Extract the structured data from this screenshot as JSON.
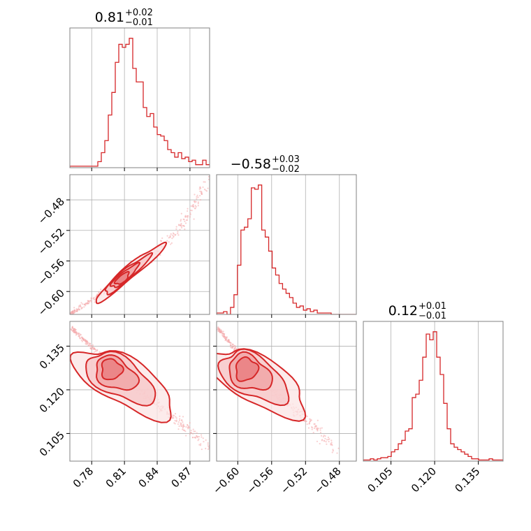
{
  "chart_data": {
    "type": "corner",
    "color": "#d62728",
    "grid": true,
    "panels": [
      {
        "kind": "histogram",
        "row": 0,
        "col": 0,
        "title": {
          "value": "0.81",
          "plus": "+0.02",
          "minus": "−0.01"
        },
        "xlim": [
          0.76,
          0.888
        ],
        "bins_start": 0.76,
        "bin_width": 0.0032,
        "values": [
          1,
          1,
          1,
          1,
          1,
          1,
          1,
          1,
          4,
          10,
          18,
          35,
          50,
          70,
          82,
          80,
          82,
          86,
          66,
          57,
          57,
          40,
          34,
          36,
          27,
          22,
          21,
          18,
          12,
          10,
          7,
          10,
          6,
          7,
          4,
          5,
          2,
          2,
          5,
          2,
          2,
          1,
          1,
          2
        ],
        "xticks": [
          0.78,
          0.81,
          0.84,
          0.87
        ],
        "xtick_labels": [
          "0.78",
          "0.81",
          "0.84",
          "0.87"
        ],
        "show_xtick_labels": false
      },
      {
        "kind": "contour",
        "row": 1,
        "col": 0,
        "xlim": [
          0.76,
          0.888
        ],
        "ylim": [
          -0.63,
          -0.447
        ],
        "xticks": [
          0.78,
          0.81,
          0.84,
          0.87
        ],
        "yticks": [
          -0.6,
          -0.56,
          -0.52,
          -0.48
        ],
        "ytick_labels": [
          "−0.60",
          "−0.56",
          "−0.52",
          "−0.48"
        ],
        "show_xtick_labels": false,
        "show_ytick_labels": true,
        "centerline": [
          [
            0.76,
            -0.63
          ],
          [
            0.8,
            -0.592
          ],
          [
            0.83,
            -0.56
          ],
          [
            0.86,
            -0.518
          ],
          [
            0.888,
            -0.451
          ]
        ],
        "sigma_levels": [
          {
            "center": [
              0.808,
              -0.583
            ],
            "slope_deg": 40,
            "a": 0.0048,
            "b": 0.0045
          },
          {
            "center": [
              0.81,
              -0.58
            ],
            "slope_deg": 40,
            "a": 0.01,
            "b": 0.0055
          },
          {
            "center": [
              0.812,
              -0.578
            ],
            "slope_deg": 40,
            "a": 0.017,
            "b": 0.0068
          },
          {
            "center": [
              0.815,
              -0.575
            ],
            "slope_deg": 40,
            "a": 0.026,
            "b": 0.008
          }
        ]
      },
      {
        "kind": "histogram",
        "row": 1,
        "col": 1,
        "title": {
          "value": "−0.58",
          "plus": "+0.03",
          "minus": "−0.02"
        },
        "xlim": [
          -0.625,
          -0.46
        ],
        "bins_start": -0.625,
        "bin_width": 0.0041,
        "values": [
          1,
          1,
          2,
          0,
          5,
          14,
          35,
          60,
          62,
          68,
          90,
          89,
          92,
          60,
          55,
          45,
          33,
          28,
          22,
          18,
          15,
          12,
          8,
          5,
          6,
          3,
          4,
          2,
          3,
          1,
          1,
          1,
          1,
          0,
          0,
          0,
          0,
          0,
          0,
          0
        ],
        "xticks": [
          -0.6,
          -0.56,
          -0.52,
          -0.48
        ],
        "xtick_labels": [
          "−0.60",
          "−0.56",
          "−0.52",
          "−0.48"
        ],
        "show_xtick_labels": false
      },
      {
        "kind": "contour",
        "row": 2,
        "col": 0,
        "xlim": [
          0.76,
          0.888
        ],
        "ylim": [
          0.0955,
          0.1435
        ],
        "xticks": [
          0.78,
          0.81,
          0.84,
          0.87
        ],
        "xtick_labels": [
          "0.78",
          "0.81",
          "0.84",
          "0.87"
        ],
        "yticks": [
          0.105,
          0.12,
          0.135
        ],
        "ytick_labels": [
          "0.105",
          "0.120",
          "0.135"
        ],
        "show_xtick_labels": true,
        "show_ytick_labels": true,
        "centerline": [
          [
            0.762,
            0.141
          ],
          [
            0.8,
            0.128
          ],
          [
            0.83,
            0.118
          ],
          [
            0.86,
            0.109
          ],
          [
            0.888,
            0.1
          ]
        ],
        "sigma_levels": [
          {
            "center": [
              0.798,
              0.127
            ],
            "slope_deg": -30,
            "a": 0.006,
            "b": 0.0035
          },
          {
            "center": [
              0.802,
              0.1255
            ],
            "slope_deg": -30,
            "a": 0.013,
            "b": 0.005
          },
          {
            "center": [
              0.806,
              0.124
            ],
            "slope_deg": -30,
            "a": 0.022,
            "b": 0.0065
          },
          {
            "center": [
              0.81,
              0.1225
            ],
            "slope_deg": -30,
            "a": 0.032,
            "b": 0.0078
          }
        ]
      },
      {
        "kind": "contour",
        "row": 2,
        "col": 1,
        "xlim": [
          -0.625,
          -0.46
        ],
        "ylim": [
          0.0955,
          0.1435
        ],
        "xticks": [
          -0.6,
          -0.56,
          -0.52,
          -0.48
        ],
        "xtick_labels": [
          "−0.60",
          "−0.56",
          "−0.52",
          "−0.48"
        ],
        "yticks": [
          0.105,
          0.12,
          0.135
        ],
        "show_xtick_labels": true,
        "show_ytick_labels": false,
        "centerline": [
          [
            -0.623,
            0.141
          ],
          [
            -0.59,
            0.129
          ],
          [
            -0.56,
            0.12
          ],
          [
            -0.52,
            0.11
          ],
          [
            -0.485,
            0.1
          ]
        ],
        "sigma_levels": [
          {
            "center": [
              -0.59,
              0.127
            ],
            "slope_deg": -30,
            "a": 0.008,
            "b": 0.004
          },
          {
            "center": [
              -0.586,
              0.1258
            ],
            "slope_deg": -30,
            "a": 0.017,
            "b": 0.0055
          },
          {
            "center": [
              -0.581,
              0.1243
            ],
            "slope_deg": -30,
            "a": 0.028,
            "b": 0.0068
          },
          {
            "center": [
              -0.576,
              0.1228
            ],
            "slope_deg": -30,
            "a": 0.04,
            "b": 0.008
          }
        ]
      },
      {
        "kind": "histogram",
        "row": 2,
        "col": 2,
        "title": {
          "value": "0.12",
          "plus": "+0.01",
          "minus": "−0.01"
        },
        "xlim": [
          0.0955,
          0.1435
        ],
        "bins_start": 0.0955,
        "bin_width": 0.0012,
        "values": [
          1,
          1,
          2,
          1,
          2,
          3,
          3,
          4,
          8,
          10,
          15,
          18,
          26,
          28,
          55,
          58,
          70,
          90,
          110,
          105,
          112,
          90,
          75,
          50,
          28,
          15,
          12,
          10,
          8,
          6,
          4,
          2,
          2,
          1,
          1,
          1,
          2,
          1,
          1,
          1
        ],
        "xticks": [
          0.105,
          0.12,
          0.135
        ],
        "xtick_labels": [
          "0.105",
          "0.120",
          "0.135"
        ],
        "show_xtick_labels": true
      }
    ]
  }
}
